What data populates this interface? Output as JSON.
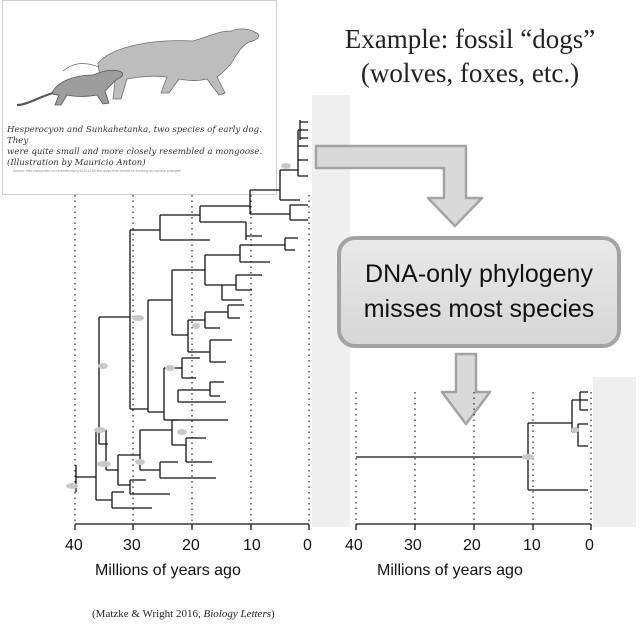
{
  "title": {
    "line1": "Example: fossil “dogs”",
    "line2": "(wolves, foxes, etc.)"
  },
  "illustration": {
    "caption_line1": "Hesperocyon and Sunkahetanka, two species of early dog. They",
    "caption_line2": "were quite small and more closely resembled a mongoose.",
    "caption_line3": "(Illustration by Mauricio Anton)",
    "source": "Source: http://www.bbc.co.uk/earth/story/20151106-the-dogs-that-turned-to-hunting-as-climate-changed"
  },
  "callout": {
    "line1": "DNA-only phylogeny",
    "line2": "misses most species"
  },
  "left_tree": {
    "ticks": [
      "40",
      "30",
      "20",
      "10",
      "0"
    ],
    "xlabel": "Millions of years ago"
  },
  "right_tree": {
    "ticks": [
      "40",
      "30",
      "20",
      "10",
      "0"
    ],
    "xlabel": "Millions of years ago"
  },
  "citation": {
    "prefix": "(Matzke & Wright 2016, ",
    "journal": "Biology Letters",
    "suffix": ")"
  },
  "colors": {
    "arrow_fill": "#d9d9d9",
    "arrow_stroke": "#a3a3a3",
    "present_band": "#efefef",
    "branch": "#111111",
    "node_marker": "#c8c8c8"
  }
}
